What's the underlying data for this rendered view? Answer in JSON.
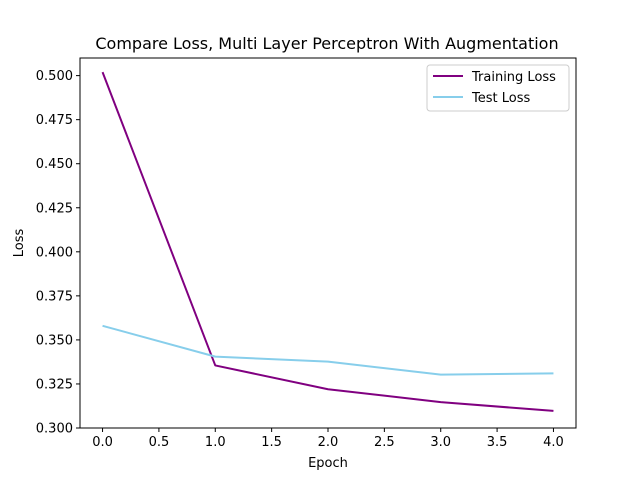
{
  "chart_data": {
    "type": "line",
    "title": "Compare Loss, Multi Layer Perceptron With Augmentation",
    "xlabel": "Epoch",
    "ylabel": "Loss",
    "xlim": [
      -0.2,
      4.2
    ],
    "ylim": [
      0.3,
      0.51
    ],
    "x_ticks": [
      0.0,
      0.5,
      1.0,
      1.5,
      2.0,
      2.5,
      3.0,
      3.5,
      4.0
    ],
    "x_tick_labels": [
      "0.0",
      "0.5",
      "1.0",
      "1.5",
      "2.0",
      "2.5",
      "3.0",
      "3.5",
      "4.0"
    ],
    "y_ticks": [
      0.3,
      0.325,
      0.35,
      0.375,
      0.4,
      0.425,
      0.45,
      0.475,
      0.5
    ],
    "y_tick_labels": [
      "0.300",
      "0.325",
      "0.350",
      "0.375",
      "0.400",
      "0.425",
      "0.450",
      "0.475",
      "0.500"
    ],
    "x": [
      0,
      1,
      2,
      3,
      4
    ],
    "series": [
      {
        "name": "Training Loss",
        "color": "#800080",
        "values": [
          0.502,
          0.3355,
          0.322,
          0.3147,
          0.3097
        ]
      },
      {
        "name": "Test Loss",
        "color": "#87ceeb",
        "values": [
          0.358,
          0.3405,
          0.3377,
          0.3303,
          0.331
        ]
      }
    ],
    "grid": false,
    "legend_position": "top-right"
  }
}
